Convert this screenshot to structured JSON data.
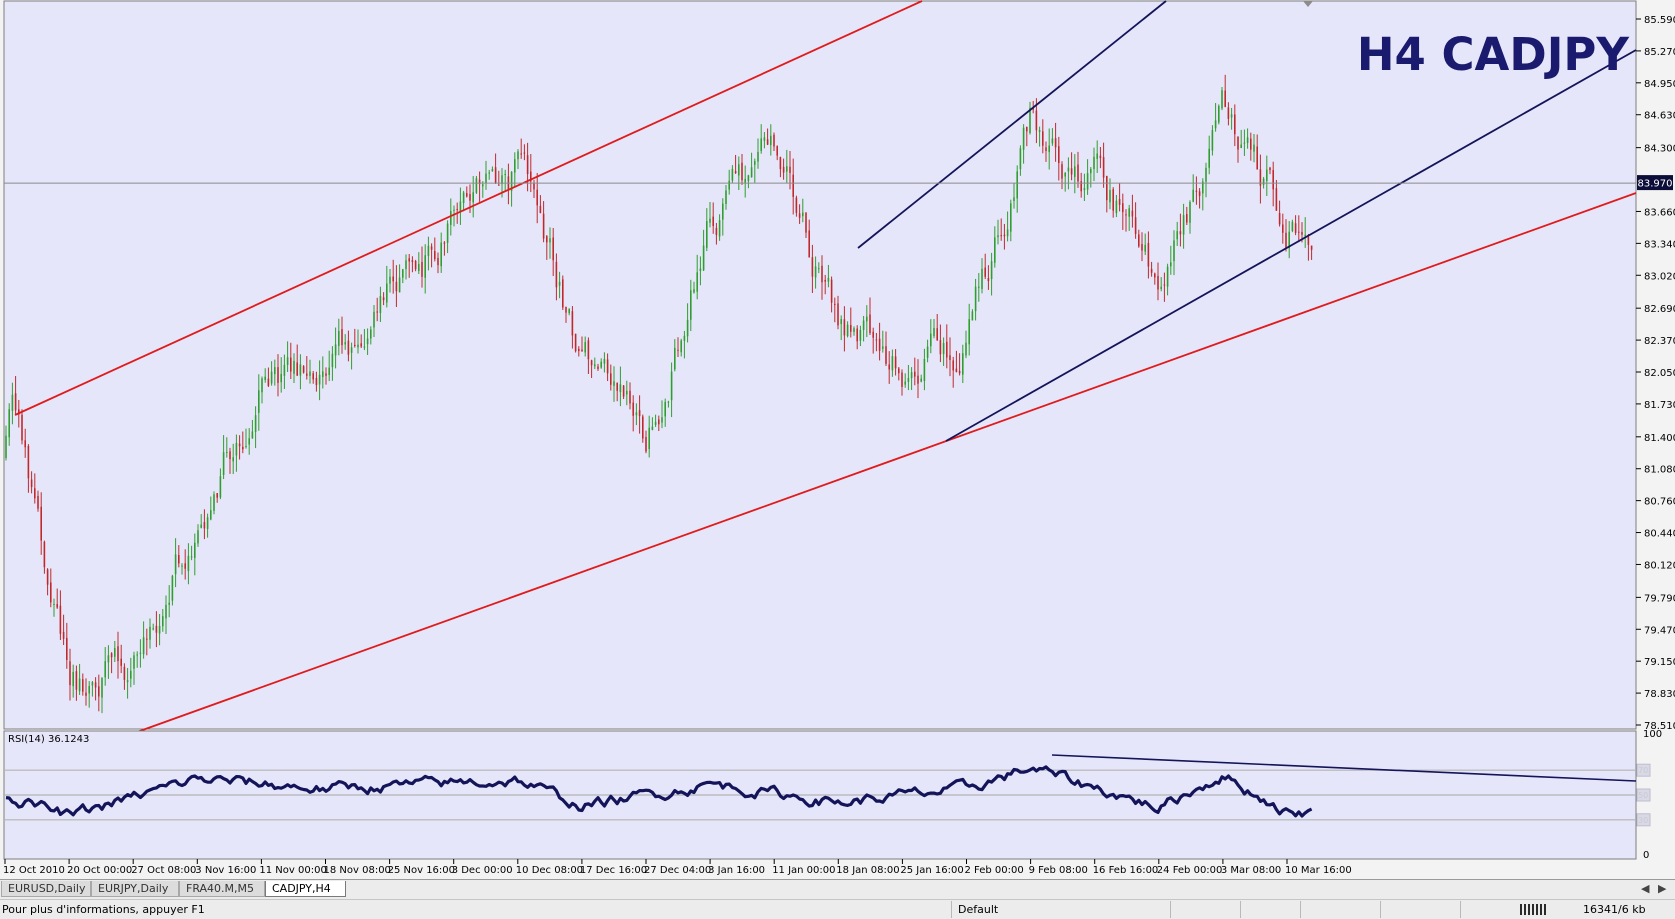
{
  "window": {
    "title": "CADJPY,H4"
  },
  "chart": {
    "title": "H4 CADJPY",
    "bid": "83.970",
    "price_ticks": [
      "85.590",
      "85.270",
      "84.950",
      "84.630",
      "84.300",
      "83.970",
      "83.660",
      "83.340",
      "83.020",
      "82.690",
      "82.370",
      "82.050",
      "81.730",
      "81.400",
      "81.080",
      "80.760",
      "80.440",
      "80.120",
      "79.790",
      "79.470",
      "79.150",
      "78.830",
      "78.510"
    ],
    "date_ticks": [
      "12 Oct 2010",
      "20 Oct 00:00",
      "27 Oct 08:00",
      "3 Nov 16:00",
      "11 Nov 00:00",
      "18 Nov 08:00",
      "25 Nov 16:00",
      "3 Dec 00:00",
      "10 Dec 08:00",
      "17 Dec 16:00",
      "27 Dec 04:00",
      "3 Jan 16:00",
      "11 Jan 00:00",
      "18 Jan 08:00",
      "25 Jan 16:00",
      "2 Feb 00:00",
      "9 Feb 08:00",
      "16 Feb 16:00",
      "24 Feb 00:00",
      "3 Mar 08:00",
      "10 Mar 16:00"
    ],
    "colors": {
      "background": "#e6e6fa",
      "bull": "#2e9e2e",
      "bear": "#c0292b",
      "channel": "#e01b1b",
      "trend": "#14145a",
      "rsi": "#14145a"
    }
  },
  "rsi": {
    "label": "RSI(14) 36.1243",
    "ticks": [
      "100",
      "0"
    ],
    "levels": [
      "70",
      "50",
      "30"
    ]
  },
  "tabs": [
    {
      "label": "EURUSD,Daily",
      "active": false
    },
    {
      "label": "EURJPY,Daily",
      "active": false
    },
    {
      "label": "FRA40.M,M5",
      "active": false
    },
    {
      "label": "CADJPY,H4",
      "active": true
    }
  ],
  "statusbar": {
    "help": "Pour plus d'informations, appuyer F1",
    "profile": "Default",
    "traffic": "16341/6 kb"
  },
  "chart_data": [
    {
      "type": "candlestick",
      "title": "H4 CADJPY",
      "x_ticks": [
        "12 Oct 2010",
        "20 Oct 00:00",
        "27 Oct 08:00",
        "3 Nov 16:00",
        "11 Nov 00:00",
        "18 Nov 08:00",
        "25 Nov 16:00",
        "3 Dec 00:00",
        "10 Dec 08:00",
        "17 Dec 16:00",
        "27 Dec 04:00",
        "3 Jan 16:00",
        "11 Jan 00:00",
        "18 Jan 08:00",
        "25 Jan 16:00",
        "2 Feb 00:00",
        "9 Feb 08:00",
        "16 Feb 16:00",
        "24 Feb 00:00",
        "3 Mar 08:00",
        "10 Mar 16:00"
      ],
      "ylim": [
        78.51,
        85.59
      ],
      "last_price": 83.97,
      "anchors": [
        {
          "x": "12 Oct 2010",
          "price": 81.2
        },
        {
          "x": "14 Oct 2010",
          "price": 81.7
        },
        {
          "x": "20 Oct 00:00",
          "price": 78.8
        },
        {
          "x": "27 Oct 08:00",
          "price": 79.1
        },
        {
          "x": "3 Nov 16:00",
          "price": 80.7
        },
        {
          "x": "11 Nov 00:00",
          "price": 82.1
        },
        {
          "x": "18 Nov 08:00",
          "price": 81.9
        },
        {
          "x": "25 Nov 16:00",
          "price": 82.7
        },
        {
          "x": "3 Dec 00:00",
          "price": 83.5
        },
        {
          "x": "10 Dec 08:00",
          "price": 84.0
        },
        {
          "x": "17 Dec 16:00",
          "price": 82.2
        },
        {
          "x": "27 Dec 04:00",
          "price": 81.3
        },
        {
          "x": "3 Jan 16:00",
          "price": 83.6
        },
        {
          "x": "11 Jan 00:00",
          "price": 84.3
        },
        {
          "x": "18 Jan 08:00",
          "price": 82.5
        },
        {
          "x": "25 Jan 16:00",
          "price": 82.2
        },
        {
          "x": "2 Feb 00:00",
          "price": 82.4
        },
        {
          "x": "9 Feb 08:00",
          "price": 84.5
        },
        {
          "x": "16 Feb 16:00",
          "price": 84.0
        },
        {
          "x": "24 Feb 00:00",
          "price": 83.0
        },
        {
          "x": "3 Mar 08:00",
          "price": 84.6
        },
        {
          "x": "10 Mar 16:00",
          "price": 83.6
        }
      ]
    },
    {
      "type": "line",
      "title": "RSI(14) 36.1243",
      "ylim": [
        0,
        100
      ],
      "levels": [
        70,
        50,
        30
      ],
      "last_value": 36.1243,
      "anchors": [
        {
          "x": "12 Oct 2010",
          "value": 50
        },
        {
          "x": "20 Oct 00:00",
          "value": 33
        },
        {
          "x": "3 Nov 16:00",
          "value": 63
        },
        {
          "x": "18 Nov 08:00",
          "value": 55
        },
        {
          "x": "10 Dec 08:00",
          "value": 62
        },
        {
          "x": "17 Dec 16:00",
          "value": 41
        },
        {
          "x": "3 Jan 16:00",
          "value": 59
        },
        {
          "x": "18 Jan 08:00",
          "value": 44
        },
        {
          "x": "2 Feb 00:00",
          "value": 55
        },
        {
          "x": "9 Feb 08:00",
          "value": 72
        },
        {
          "x": "24 Feb 00:00",
          "value": 40
        },
        {
          "x": "3 Mar 08:00",
          "value": 66
        },
        {
          "x": "10 Mar 16:00",
          "value": 36
        }
      ]
    }
  ]
}
